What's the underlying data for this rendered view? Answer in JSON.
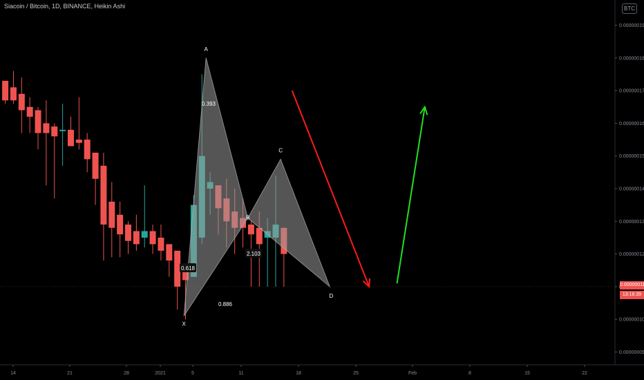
{
  "header": {
    "title": "Siacoin / Bitcoin, 1D, BINANCE, Heikin Ashi"
  },
  "axis_badge": "BTC",
  "last_price": "0.00000011",
  "countdown": "13:16:39",
  "colors": {
    "background": "#000000",
    "up": "#26a69a",
    "down": "#ef5350",
    "arrow_down": "#ff1a1a",
    "arrow_up": "#22e022",
    "pattern_fill": "#9a9a9a"
  },
  "chart_data": {
    "type": "candlestick",
    "style": "Heikin Ashi",
    "symbol": "Siacoin / Bitcoin",
    "interval": "1D",
    "exchange": "BINANCE",
    "y_ticks": [
      "0.00000009",
      "0.00000010",
      "0.00000011",
      "0.00000012",
      "0.00000013",
      "0.00000014",
      "0.00000015",
      "0.00000016",
      "0.00000017",
      "0.00000018",
      "0.00000019"
    ],
    "x_ticks": [
      "14",
      "21",
      "28",
      "2021",
      "5",
      "11",
      "18",
      "25",
      "Feb",
      "8",
      "15",
      "22"
    ],
    "ylim": [
      8.88e-08,
      1.994e-07
    ],
    "candles": [
      {
        "o": 1.73,
        "c": 1.67,
        "h": 1.73,
        "l": 1.66,
        "dir": "down"
      },
      {
        "o": 1.71,
        "c": 1.67,
        "h": 1.76,
        "l": 1.66,
        "dir": "down"
      },
      {
        "o": 1.69,
        "c": 1.64,
        "h": 1.74,
        "l": 1.57,
        "dir": "down"
      },
      {
        "o": 1.65,
        "c": 1.62,
        "h": 1.68,
        "l": 1.57,
        "dir": "down"
      },
      {
        "o": 1.64,
        "c": 1.57,
        "h": 1.65,
        "l": 1.52,
        "dir": "down"
      },
      {
        "o": 1.6,
        "c": 1.57,
        "h": 1.67,
        "l": 1.41,
        "dir": "down"
      },
      {
        "o": 1.59,
        "c": 1.56,
        "h": 1.6,
        "l": 1.37,
        "dir": "down"
      },
      {
        "o": 1.58,
        "c": 1.58,
        "h": 1.66,
        "l": 1.47,
        "dir": "up"
      },
      {
        "o": 1.58,
        "c": 1.53,
        "h": 1.62,
        "l": 1.53,
        "dir": "down"
      },
      {
        "o": 1.55,
        "c": 1.54,
        "h": 1.68,
        "l": 1.52,
        "dir": "down"
      },
      {
        "o": 1.55,
        "c": 1.49,
        "h": 1.57,
        "l": 1.45,
        "dir": "down"
      },
      {
        "o": 1.51,
        "c": 1.43,
        "h": 1.51,
        "l": 1.35,
        "dir": "down"
      },
      {
        "o": 1.47,
        "c": 1.29,
        "h": 1.51,
        "l": 1.18,
        "dir": "down"
      },
      {
        "o": 1.36,
        "c": 1.28,
        "h": 1.42,
        "l": 1.19,
        "dir": "down"
      },
      {
        "o": 1.32,
        "c": 1.26,
        "h": 1.36,
        "l": 1.19,
        "dir": "down"
      },
      {
        "o": 1.29,
        "c": 1.24,
        "h": 1.3,
        "l": 1.2,
        "dir": "down"
      },
      {
        "o": 1.27,
        "c": 1.23,
        "h": 1.32,
        "l": 1.21,
        "dir": "down"
      },
      {
        "o": 1.25,
        "c": 1.27,
        "h": 1.41,
        "l": 1.22,
        "dir": "up"
      },
      {
        "o": 1.27,
        "c": 1.23,
        "h": 1.29,
        "l": 1.2,
        "dir": "down"
      },
      {
        "o": 1.25,
        "c": 1.21,
        "h": 1.29,
        "l": 1.18,
        "dir": "down"
      },
      {
        "o": 1.23,
        "c": 1.18,
        "h": 1.23,
        "l": 1.13,
        "dir": "down"
      },
      {
        "o": 1.21,
        "c": 1.1,
        "h": 1.21,
        "l": 1.03,
        "dir": "down"
      },
      {
        "o": 1.16,
        "c": 1.12,
        "h": 1.17,
        "l": 1.0,
        "dir": "down"
      },
      {
        "o": 1.13,
        "c": 1.35,
        "h": 1.38,
        "l": 1.13,
        "dir": "up"
      },
      {
        "o": 1.25,
        "c": 1.5,
        "h": 1.75,
        "l": 1.23,
        "dir": "up"
      },
      {
        "o": 1.4,
        "c": 1.42,
        "h": 1.45,
        "l": 1.32,
        "dir": "up"
      },
      {
        "o": 1.41,
        "c": 1.34,
        "h": 1.41,
        "l": 1.26,
        "dir": "down"
      },
      {
        "o": 1.37,
        "c": 1.3,
        "h": 1.43,
        "l": 1.22,
        "dir": "down"
      },
      {
        "o": 1.33,
        "c": 1.28,
        "h": 1.4,
        "l": 1.2,
        "dir": "down"
      },
      {
        "o": 1.31,
        "c": 1.28,
        "h": 1.37,
        "l": 1.22,
        "dir": "down"
      },
      {
        "o": 1.29,
        "c": 1.26,
        "h": 1.3,
        "l": 1.1,
        "dir": "down"
      },
      {
        "o": 1.28,
        "c": 1.23,
        "h": 1.33,
        "l": 1.1,
        "dir": "down"
      },
      {
        "o": 1.25,
        "c": 1.27,
        "h": 1.31,
        "l": 1.1,
        "dir": "up"
      },
      {
        "o": 1.25,
        "c": 1.29,
        "h": 1.44,
        "l": 1.1,
        "dir": "up"
      },
      {
        "o": 1.28,
        "c": 1.2,
        "h": 1.28,
        "l": 1.1,
        "dir": "down"
      }
    ],
    "pattern": {
      "type": "harmonic",
      "points": [
        {
          "label": "X",
          "x_index": 21.8,
          "price": 1.01
        },
        {
          "label": "A",
          "x_index": 24.5,
          "price": 1.8
        },
        {
          "label": "B",
          "x_index": 29.6,
          "price": 1.31
        },
        {
          "label": "C",
          "x_index": 33.6,
          "price": 1.49
        },
        {
          "label": "D",
          "x_index": 39.6,
          "price": 1.1
        }
      ],
      "ratios": [
        {
          "text": "0.393"
        },
        {
          "text": "0.618"
        },
        {
          "text": "0.886"
        },
        {
          "text": "2.103"
        }
      ]
    },
    "arrows": [
      {
        "name": "down-arrow",
        "from_index": 35.0,
        "from_price": 1.7,
        "to_index": 44.4,
        "to_price": 1.1
      },
      {
        "name": "up-arrow",
        "from_index": 47.8,
        "from_price": 1.11,
        "to_index": 51.2,
        "to_price": 1.65
      }
    ]
  }
}
